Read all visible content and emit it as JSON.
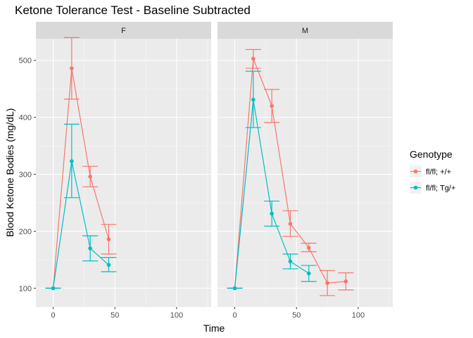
{
  "chart_data": {
    "type": "line",
    "title": "Ketone Tolerance Test - Baseline Subtracted",
    "xlabel": "Time",
    "ylabel": "Blood Ketone Bodies (mg/dL)",
    "xlim": [
      -14,
      128
    ],
    "ylim": [
      67,
      538
    ],
    "x_ticks": [
      0,
      50,
      100
    ],
    "y_ticks": [
      100,
      200,
      300,
      400,
      500
    ],
    "grid": true,
    "legend": {
      "title": "Genotype",
      "position": "right",
      "entries": [
        "fl/fl; +/+",
        "fl/fl; Tg/+"
      ]
    },
    "panels": [
      {
        "label": "F",
        "series": [
          {
            "name": "fl/fl; +/+",
            "color": "#F8766D",
            "points": [
              {
                "x": 0,
                "y": 100,
                "lo": 100,
                "hi": 100
              },
              {
                "x": 15,
                "y": 486,
                "lo": 432,
                "hi": 540
              },
              {
                "x": 30,
                "y": 296,
                "lo": 278,
                "hi": 314
              },
              {
                "x": 45,
                "y": 186,
                "lo": 160,
                "hi": 212
              }
            ]
          },
          {
            "name": "fl/fl; Tg/+",
            "color": "#00BFC4",
            "points": [
              {
                "x": 0,
                "y": 100,
                "lo": 100,
                "hi": 100
              },
              {
                "x": 15,
                "y": 323,
                "lo": 259,
                "hi": 388
              },
              {
                "x": 30,
                "y": 170,
                "lo": 148,
                "hi": 192
              },
              {
                "x": 45,
                "y": 141,
                "lo": 129,
                "hi": 154
              }
            ]
          }
        ]
      },
      {
        "label": "M",
        "series": [
          {
            "name": "fl/fl; +/+",
            "color": "#F8766D",
            "points": [
              {
                "x": 0,
                "y": 100,
                "lo": 100,
                "hi": 100
              },
              {
                "x": 15,
                "y": 503,
                "lo": 486,
                "hi": 519
              },
              {
                "x": 30,
                "y": 420,
                "lo": 391,
                "hi": 449
              },
              {
                "x": 45,
                "y": 213,
                "lo": 191,
                "hi": 236
              },
              {
                "x": 60,
                "y": 171,
                "lo": 164,
                "hi": 179
              },
              {
                "x": 75,
                "y": 109,
                "lo": 87,
                "hi": 131
              },
              {
                "x": 90,
                "y": 112,
                "lo": 97,
                "hi": 127
              }
            ]
          },
          {
            "name": "fl/fl; Tg/+",
            "color": "#00BFC4",
            "points": [
              {
                "x": 0,
                "y": 100,
                "lo": 100,
                "hi": 100
              },
              {
                "x": 15,
                "y": 431,
                "lo": 382,
                "hi": 481
              },
              {
                "x": 30,
                "y": 231,
                "lo": 209,
                "hi": 253
              },
              {
                "x": 45,
                "y": 147,
                "lo": 134,
                "hi": 160
              },
              {
                "x": 60,
                "y": 126,
                "lo": 112,
                "hi": 140
              }
            ]
          }
        ]
      }
    ]
  }
}
